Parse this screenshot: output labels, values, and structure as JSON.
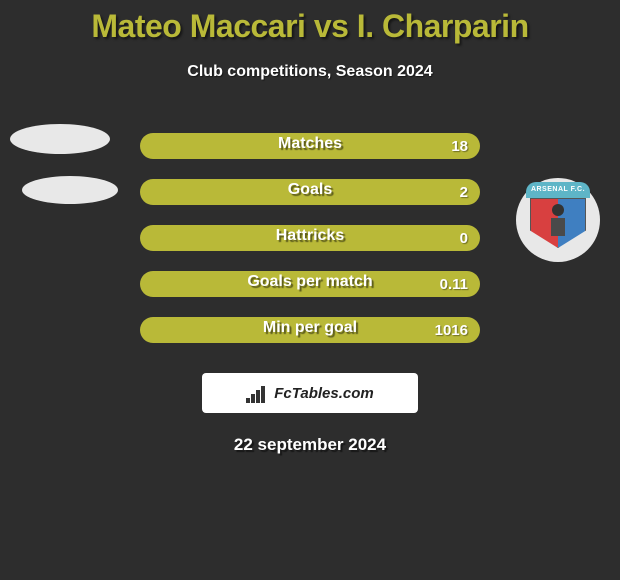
{
  "title": "Mateo Maccari vs I. Charparin",
  "subtitle": "Club competitions, Season 2024",
  "date": "22 september 2024",
  "logo_text": "FcTables.com",
  "colors": {
    "accent": "#b9b938",
    "bar_left": "#b9b938",
    "bar_right": "#b9b938",
    "background": "#2d2d2d"
  },
  "crest": {
    "top_label": "ARSENAL F.C."
  },
  "stats": [
    {
      "label": "Matches",
      "left_value": "",
      "right_value": "18",
      "left_width": 170,
      "right_width": 170
    },
    {
      "label": "Goals",
      "left_value": "",
      "right_value": "2",
      "left_width": 170,
      "right_width": 170
    },
    {
      "label": "Hattricks",
      "left_value": "",
      "right_value": "0",
      "left_width": 170,
      "right_width": 170
    },
    {
      "label": "Goals per match",
      "left_value": "",
      "right_value": "0.11",
      "left_width": 170,
      "right_width": 170
    },
    {
      "label": "Min per goal",
      "left_value": "",
      "right_value": "1016",
      "left_width": 170,
      "right_width": 170
    }
  ]
}
